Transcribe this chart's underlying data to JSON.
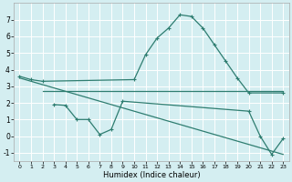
{
  "xlabel": "Humidex (Indice chaleur)",
  "bg_color": "#d4eef1",
  "grid_color": "#ffffff",
  "line_color": "#2e7d70",
  "xlim": [
    -0.5,
    23.5
  ],
  "ylim": [
    -1.5,
    8.0
  ],
  "xticks": [
    0,
    1,
    2,
    3,
    4,
    5,
    6,
    7,
    8,
    9,
    10,
    11,
    12,
    13,
    14,
    15,
    16,
    17,
    18,
    19,
    20,
    21,
    22,
    23
  ],
  "yticks": [
    -1,
    0,
    1,
    2,
    3,
    4,
    5,
    6,
    7
  ],
  "series": [
    {
      "x": [
        0,
        1,
        2,
        10,
        11,
        12,
        13,
        14,
        15,
        16,
        17,
        18,
        19,
        20,
        23
      ],
      "y": [
        3.6,
        3.4,
        3.3,
        3.4,
        4.9,
        5.9,
        6.5,
        7.3,
        7.2,
        6.5,
        5.5,
        4.5,
        3.5,
        2.6,
        2.6
      ],
      "marker": true,
      "markersize": 2.5
    },
    {
      "x": [
        2,
        23
      ],
      "y": [
        2.7,
        2.7
      ],
      "marker": false,
      "markersize": 0
    },
    {
      "x": [
        3,
        4,
        5,
        6,
        7,
        8,
        9,
        20,
        21,
        22,
        23
      ],
      "y": [
        1.9,
        1.85,
        1.0,
        1.0,
        0.1,
        0.4,
        2.1,
        1.5,
        0.0,
        -1.1,
        -0.15
      ],
      "marker": true,
      "markersize": 2.5
    },
    {
      "x": [
        0,
        23
      ],
      "y": [
        3.5,
        -1.1
      ],
      "marker": false,
      "markersize": 0
    }
  ]
}
